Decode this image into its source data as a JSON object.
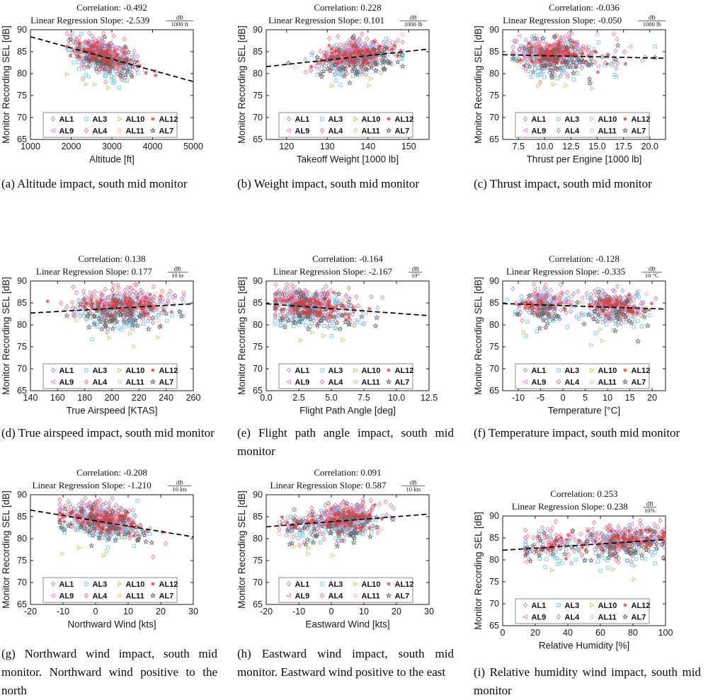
{
  "figure": {
    "background": "#ffffff"
  },
  "series_defs": [
    {
      "name": "AL1",
      "marker": "diamond",
      "color": "#a287d2",
      "n": 85,
      "dy": 1.0,
      "sigma": 1.3
    },
    {
      "name": "AL3",
      "marker": "square",
      "color": "#63c3e6",
      "n": 130,
      "dy": -0.9,
      "sigma": 2.0
    },
    {
      "name": "AL10",
      "marker": "triangle-right",
      "color": "#b3cc5e",
      "n": 4,
      "dy": -6.0,
      "sigma": 1.6
    },
    {
      "name": "AL12",
      "marker": "asterisk",
      "color": "#dd3c3c",
      "n": 65,
      "dy": 0.2,
      "sigma": 1.2
    },
    {
      "name": "AL9",
      "marker": "triangle-left",
      "color": "#ef7fe3",
      "n": 22,
      "dy": 0.2,
      "sigma": 1.9
    },
    {
      "name": "AL4",
      "marker": "diamond",
      "color": "#dd6d8c",
      "n": 185,
      "dy": 0.6,
      "sigma": 2.0
    },
    {
      "name": "AL11",
      "marker": "circle",
      "color": "#f3a78c",
      "n": 45,
      "dy": 0.3,
      "sigma": 1.4
    },
    {
      "name": "AL7",
      "marker": "star",
      "color": "#5e5e5e",
      "n": 78,
      "dy": -0.8,
      "sigma": 1.9
    }
  ],
  "legend_rows": [
    [
      "AL1",
      "AL3",
      "AL10",
      "AL12"
    ],
    [
      "AL9",
      "AL4",
      "AL11",
      "AL7"
    ]
  ],
  "trend_color": "#000000",
  "chart_data": [
    {
      "id": "a",
      "type": "scatter",
      "correlation_label": "Correlation: -0.492",
      "slope_label": "Linear Regression Slope:",
      "slope_value": "-2.539",
      "unit_numerator": "dB",
      "unit_denominator": "1000 ft",
      "xlabel": "Altitude [ft]",
      "ylabel": "Monitor Recording SEL [dB]",
      "xlim": [
        1000,
        5000
      ],
      "ylim": [
        65,
        90
      ],
      "xticks": [
        1000,
        2000,
        3000,
        4000,
        5000
      ],
      "xtick_labels": [
        "1000",
        "2000",
        "3000",
        "4000",
        "5000"
      ],
      "yticks": [
        65,
        70,
        75,
        80,
        85,
        90
      ],
      "trend": {
        "x": [
          1000,
          5000
        ],
        "y": [
          88.4,
          78.2
        ]
      },
      "clusters": [
        {
          "center": 2800,
          "spread": 400,
          "weight": 1
        }
      ],
      "xclamp": [
        1900,
        4780
      ],
      "seed": 101,
      "caption": "(a) Altitude impact, south mid monitor"
    },
    {
      "id": "b",
      "type": "scatter",
      "correlation_label": "Correlation: 0.228",
      "slope_label": "Linear Regression Slope:",
      "slope_value": "0.101",
      "unit_numerator": "dB",
      "unit_denominator": "1000 lb",
      "xlabel": "Takeoff Weight [1000 lb]",
      "ylabel": "Monitor Recording SEL [dB]",
      "xlim": [
        115,
        155
      ],
      "ylim": [
        65,
        90
      ],
      "xticks": [
        120,
        130,
        140,
        150
      ],
      "xtick_labels": [
        "120",
        "130",
        "140",
        "150"
      ],
      "yticks": [
        65,
        70,
        75,
        80,
        85,
        90
      ],
      "trend": {
        "x": [
          115,
          155
        ],
        "y": [
          81.6,
          85.6
        ]
      },
      "clusters": [
        {
          "center": 137,
          "spread": 4.8,
          "weight": 1
        }
      ],
      "xclamp": [
        118.5,
        148.5
      ],
      "seed": 202,
      "caption": "(b) Weight impact, south mid monitor"
    },
    {
      "id": "c",
      "type": "scatter",
      "correlation_label": "Correlation: -0.036",
      "slope_label": "Linear Regression Slope:",
      "slope_value": "-0.050",
      "unit_numerator": "dB",
      "unit_denominator": "1000 lb",
      "xlabel": "Thrust per Engine [1000 lb]",
      "ylabel": "Monitor Recording SEL [dB]",
      "xlim": [
        6,
        21.5
      ],
      "ylim": [
        65,
        90
      ],
      "xticks": [
        7.5,
        10.0,
        12.5,
        15.0,
        17.5,
        20.0
      ],
      "xtick_labels": [
        "7.5",
        "10.0",
        "12.5",
        "15.0",
        "17.5",
        "20.0"
      ],
      "yticks": [
        65,
        70,
        75,
        80,
        85,
        90
      ],
      "trend": {
        "x": [
          6,
          21.5
        ],
        "y": [
          84.3,
          83.5
        ]
      },
      "clusters": [
        {
          "center": 10.8,
          "spread": 1.7,
          "weight": 0.93
        },
        {
          "center": 15.5,
          "spread": 2.2,
          "weight": 0.07
        }
      ],
      "xclamp": [
        7,
        20.5
      ],
      "seed": 303,
      "caption": "(c) Thrust impact, south mid monitor"
    },
    {
      "id": "d",
      "type": "scatter",
      "correlation_label": "Correlation: 0.138",
      "slope_label": "Linear Regression Slope:",
      "slope_value": "0.177",
      "unit_numerator": "dB",
      "unit_denominator": "10 kt",
      "xlabel": "True Airspeed [KTAS]",
      "ylabel": "Monitor Recording SEL [dB]",
      "xlim": [
        140,
        260
      ],
      "ylim": [
        65,
        90
      ],
      "xticks": [
        140,
        160,
        180,
        200,
        220,
        240,
        260
      ],
      "xtick_labels": [
        "140",
        "160",
        "180",
        "200",
        "220",
        "240",
        "260"
      ],
      "yticks": [
        65,
        70,
        75,
        80,
        85,
        90
      ],
      "trend": {
        "x": [
          140,
          260
        ],
        "y": [
          82.7,
          84.8
        ]
      },
      "clusters": [
        {
          "center": 208,
          "spread": 17,
          "weight": 1
        }
      ],
      "xclamp": [
        150,
        253
      ],
      "seed": 404,
      "caption": "(d) True airspeed impact, south mid monitor"
    },
    {
      "id": "e",
      "type": "scatter",
      "correlation_label": "Correlation: -0.164",
      "slope_label": "Linear Regression Slope:",
      "slope_value": "-2.167",
      "unit_numerator": "dB",
      "unit_denominator": "10°",
      "xlabel": "Flight Path Angle [deg]",
      "ylabel": "Monitor Recording SEL [dB]",
      "xlim": [
        0,
        12.5
      ],
      "ylim": [
        65,
        90
      ],
      "xticks": [
        0,
        2.5,
        5.0,
        7.5,
        10.0,
        12.5
      ],
      "xtick_labels": [
        "0.0",
        "2.5",
        "5.0",
        "7.5",
        "10.0",
        "12.5"
      ],
      "yticks": [
        65,
        70,
        75,
        80,
        85,
        90
      ],
      "trend": {
        "x": [
          0,
          12.5
        ],
        "y": [
          84.8,
          82.1
        ]
      },
      "clusters": [
        {
          "center": 3.0,
          "spread": 1.3,
          "weight": 0.85
        },
        {
          "center": 5.8,
          "spread": 1.3,
          "weight": 0.15
        }
      ],
      "xclamp": [
        0.7,
        10.2
      ],
      "seed": 505,
      "caption": "(e) Flight path angle impact, south mid monitor"
    },
    {
      "id": "f",
      "type": "scatter",
      "correlation_label": "Correlation: -0.128",
      "slope_label": "Linear Regression Slope:",
      "slope_value": "-0.335",
      "unit_numerator": "dB",
      "unit_denominator": "10 °C",
      "xlabel": "Temperature [°C]",
      "ylabel": "Monitor Recording SEL [dB]",
      "xlim": [
        -13.5,
        23
      ],
      "ylim": [
        65,
        90
      ],
      "xticks": [
        -10,
        -5,
        0,
        5,
        10,
        15,
        20
      ],
      "xtick_labels": [
        "-10",
        "-5",
        "0",
        "5",
        "10",
        "15",
        "20"
      ],
      "yticks": [
        65,
        70,
        75,
        80,
        85,
        90
      ],
      "trend": {
        "x": [
          -13.5,
          23
        ],
        "y": [
          84.85,
          83.6
        ]
      },
      "clusters": [
        {
          "center": -4.5,
          "spread": 3.2,
          "weight": 0.38
        },
        {
          "center": 11.5,
          "spread": 3.4,
          "weight": 0.62
        }
      ],
      "xclamp": [
        -13,
        22
      ],
      "seed": 606,
      "caption": "(f) Temperature impact, south mid monitor"
    },
    {
      "id": "g",
      "type": "scatter",
      "correlation_label": "Correlation: -0.208",
      "slope_label": "Linear Regression Slope:",
      "slope_value": "-1.210",
      "unit_numerator": "dB",
      "unit_denominator": "10 kts",
      "xlabel": "Northward Wind [kts]",
      "ylabel": "Monitor Recording SEL [dB]",
      "xlim": [
        -20,
        30
      ],
      "ylim": [
        65,
        90
      ],
      "xticks": [
        -20,
        -10,
        0,
        10,
        20,
        30
      ],
      "xtick_labels": [
        "-20",
        "-10",
        "0",
        "10",
        "20",
        "30"
      ],
      "yticks": [
        65,
        70,
        75,
        80,
        85,
        90
      ],
      "trend": {
        "x": [
          -20,
          30
        ],
        "y": [
          86.5,
          80.4
        ]
      },
      "clusters": [
        {
          "center": 2,
          "spread": 6.3,
          "weight": 1
        }
      ],
      "xclamp": [
        -11,
        21.5
      ],
      "seed": 707,
      "caption": "(g) Northward wind impact, south mid monitor. Northward wind positive to the north"
    },
    {
      "id": "h",
      "type": "scatter",
      "correlation_label": "Correlation: 0.091",
      "slope_label": "Linear Regression Slope:",
      "slope_value": "0.587",
      "unit_numerator": "dB",
      "unit_denominator": "10 kts",
      "xlabel": "Eastward Wind [kts]",
      "ylabel": "Monitor Recording SEL [dB]",
      "xlim": [
        -20,
        30
      ],
      "ylim": [
        65,
        90
      ],
      "xticks": [
        -20,
        -10,
        0,
        10,
        20,
        30
      ],
      "xtick_labels": [
        "-20",
        "-10",
        "0",
        "10",
        "20",
        "30"
      ],
      "yticks": [
        65,
        70,
        75,
        80,
        85,
        90
      ],
      "trend": {
        "x": [
          -20,
          30
        ],
        "y": [
          82.7,
          85.6
        ]
      },
      "clusters": [
        {
          "center": 4.5,
          "spread": 5.0,
          "weight": 0.82
        },
        {
          "center": -8,
          "spread": 4.0,
          "weight": 0.18
        }
      ],
      "xclamp": [
        -16,
        25
      ],
      "seed": 808,
      "caption": "(h) Eastward wind impact, south mid monitor. Eastward wind positive to the east"
    },
    {
      "id": "i",
      "type": "scatter",
      "correlation_label": "Correlation: 0.253",
      "slope_label": "Linear Regression Slope:",
      "slope_value": "0.238",
      "unit_numerator": "dB",
      "unit_denominator": "10%",
      "xlabel": "Relative Humidity [%]",
      "ylabel": "Monitor Recording SEL [dB]",
      "xlim": [
        0,
        100
      ],
      "ylim": [
        65,
        90
      ],
      "xticks": [
        0,
        20,
        40,
        60,
        80,
        100
      ],
      "xtick_labels": [
        "0",
        "20",
        "40",
        "60",
        "80",
        "100"
      ],
      "yticks": [
        65,
        70,
        75,
        80,
        85,
        90
      ],
      "trend": {
        "x": [
          0,
          100
        ],
        "y": [
          82.2,
          84.6
        ]
      },
      "clusters": [
        {
          "center": 76,
          "spread": 13,
          "weight": 0.75
        },
        {
          "center": 30,
          "spread": 10,
          "weight": 0.25
        }
      ],
      "xclamp": [
        14,
        99
      ],
      "seed": 909,
      "caption": "(i) Relative humidity wind impact, south mid monitor"
    }
  ]
}
